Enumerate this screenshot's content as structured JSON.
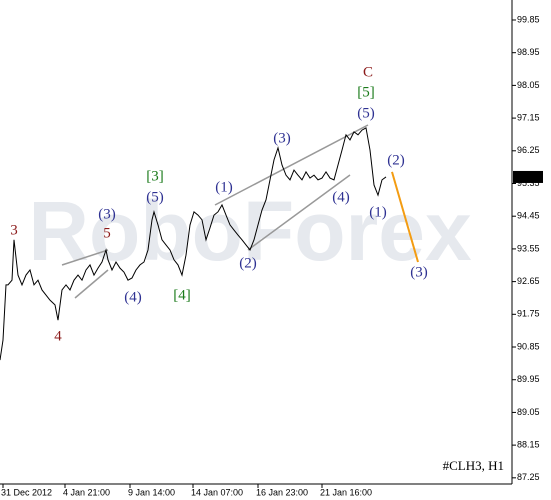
{
  "chart_data": {
    "type": "line",
    "symbol_label": "#CLH3, H1",
    "watermark": "RoboForex",
    "x": [
      0,
      0.75,
      1.5,
      2,
      3,
      3.5,
      4.5,
      5.5,
      6.5,
      7.5,
      8.5,
      9.5,
      10.5,
      11.5,
      12.5,
      13.75,
      14.5,
      15.5,
      16.5,
      17.5,
      18.5,
      19.5,
      20.5,
      21.5,
      22.5,
      23.5,
      24.5,
      25.5,
      26.5,
      27,
      28,
      29,
      30,
      31,
      32,
      33,
      34,
      35,
      36,
      37,
      38,
      38.5,
      39.5,
      40.5,
      41.5,
      42.5,
      43.5,
      44.5,
      45.5,
      46.5,
      47.5,
      48.5,
      49.5,
      50.5,
      51.5,
      52.5,
      53.5,
      54.5,
      55.5,
      56.5,
      57.5,
      58.5,
      59.5,
      60.5,
      61.5,
      62.5,
      63.5,
      64.5,
      65.5,
      66.5,
      67.5,
      68.5,
      69.5,
      70.5,
      71.5,
      72.5,
      73.5,
      74.5,
      75.5,
      76.5,
      77.5,
      78.5,
      79.5,
      80.5,
      81.5,
      82.5,
      83.5,
      84.5,
      85.5,
      86.5,
      87.5,
      88.5,
      89.5,
      90.5,
      91.5,
      92.5,
      93.5,
      94.5,
      95.5,
      96.5
    ],
    "series": [
      {
        "color": "#000000",
        "values": [
          90.49,
          91.04,
          92.56,
          92.56,
          92.69,
          93.8,
          92.83,
          92.56,
          92.83,
          92.97,
          92.56,
          92.69,
          92.42,
          92.28,
          92.14,
          92.01,
          91.59,
          92.42,
          92.56,
          92.42,
          92.69,
          92.83,
          92.69,
          92.97,
          93.11,
          92.83,
          93.02,
          93.19,
          93.52,
          93.25,
          92.97,
          93.19,
          93.02,
          92.91,
          92.69,
          92.75,
          92.97,
          93.11,
          93.19,
          93.52,
          94.35,
          94.57,
          94.21,
          93.8,
          93.66,
          93.52,
          93.25,
          93.11,
          92.83,
          93.38,
          94.21,
          94.57,
          94.48,
          94.35,
          93.8,
          94.13,
          94.48,
          94.57,
          94.76,
          94.48,
          94.21,
          94.07,
          93.93,
          93.8,
          93.66,
          93.52,
          93.8,
          94.21,
          94.62,
          94.9,
          95.45,
          96.0,
          96.33,
          95.86,
          95.58,
          95.45,
          95.72,
          95.58,
          95.45,
          95.67,
          95.5,
          95.58,
          95.45,
          95.5,
          95.67,
          95.5,
          95.45,
          95.86,
          96.27,
          96.69,
          96.55,
          96.77,
          96.69,
          96.82,
          96.88,
          96.27,
          95.31,
          95.03,
          95.45,
          95.53
        ]
      },
      {
        "color": "#f39c12",
        "x": [
          98,
          104.5
        ],
        "values": [
          95.67,
          93.19
        ]
      }
    ],
    "last_price": 95.53,
    "xlim": [
      0,
      128
    ],
    "xticks": [
      {
        "value": 0.75,
        "label": "31 Dec 2012"
      },
      {
        "value": 16.25,
        "label": "4 Jan 21:00"
      },
      {
        "value": 32.5,
        "label": "9 Jan 14:00"
      },
      {
        "value": 48.25,
        "label": "14 Jan 07:00"
      },
      {
        "value": 64.5,
        "label": "16 Jan 23:00"
      },
      {
        "value": 80.5,
        "label": "21 Jan 16:00"
      }
    ],
    "ylim": [
      87.08,
      100.4
    ],
    "yticks": [
      87.25,
      88.15,
      89.05,
      89.95,
      90.85,
      91.75,
      92.65,
      93.55,
      94.45,
      95.35,
      96.25,
      97.15,
      98.05,
      98.95,
      99.85
    ],
    "annotations": [
      {
        "text": "3",
        "color": "#8b1a1a"
      },
      {
        "text": "(3)",
        "color": "#2e3192"
      },
      {
        "text": "5",
        "color": "#8b1a1a"
      },
      {
        "text": "(4)",
        "color": "#2e3192"
      },
      {
        "text": "4",
        "color": "#8b1a1a"
      },
      {
        "text": "[3]",
        "color": "#1a7a1a"
      },
      {
        "text": "(5)",
        "color": "#2e3192"
      },
      {
        "text": "[4]",
        "color": "#1a7a1a"
      },
      {
        "text": "(1)",
        "color": "#2e3192"
      },
      {
        "text": "(2)",
        "color": "#2e3192"
      },
      {
        "text": "(3)",
        "color": "#2e3192"
      },
      {
        "text": "(4)",
        "color": "#2e3192"
      },
      {
        "text": "(5)",
        "color": "#2e3192"
      },
      {
        "text": "[5]",
        "color": "#1a7a1a"
      },
      {
        "text": "C",
        "color": "#8b1a1a"
      },
      {
        "text": "(1)",
        "color": "#2e3192"
      },
      {
        "text": "(2)",
        "color": "#2e3192"
      },
      {
        "text": "(3)",
        "color": "#2e3192"
      }
    ]
  }
}
